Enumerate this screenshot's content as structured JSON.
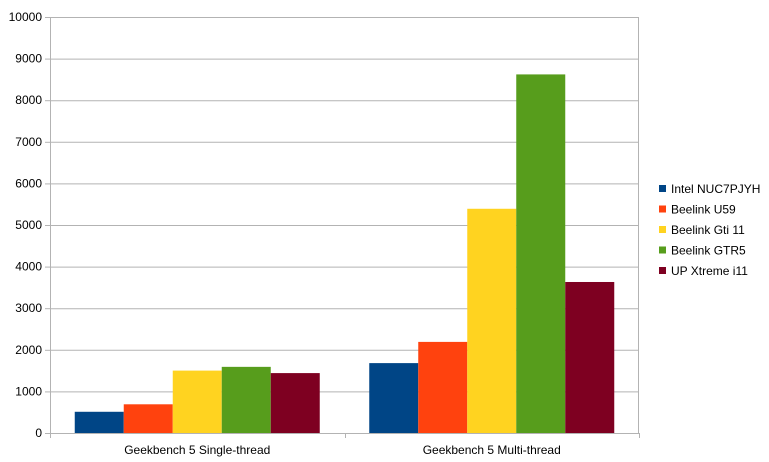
{
  "chart_data": {
    "type": "bar",
    "categories": [
      "Geekbench 5 Single-thread",
      "Geekbench 5 Multi-thread"
    ],
    "series": [
      {
        "name": "Intel NUC7PJYH",
        "color": "#004586",
        "values": [
          510,
          1680
        ]
      },
      {
        "name": "Beelink U59",
        "color": "#ff420e",
        "values": [
          690,
          2190
        ]
      },
      {
        "name": "Beelink Gti 11",
        "color": "#ffd320",
        "values": [
          1500,
          5390
        ]
      },
      {
        "name": "Beelink GTR5",
        "color": "#579d1c",
        "values": [
          1590,
          8620
        ]
      },
      {
        "name": "UP Xtreme i11",
        "color": "#7e0021",
        "values": [
          1440,
          3630
        ]
      }
    ],
    "ylim": [
      0,
      10000
    ],
    "yticks": [
      "0",
      "1000",
      "2000",
      "3000",
      "4000",
      "5000",
      "6000",
      "7000",
      "8000",
      "9000",
      "10000"
    ],
    "grid": true,
    "legend": "right"
  }
}
